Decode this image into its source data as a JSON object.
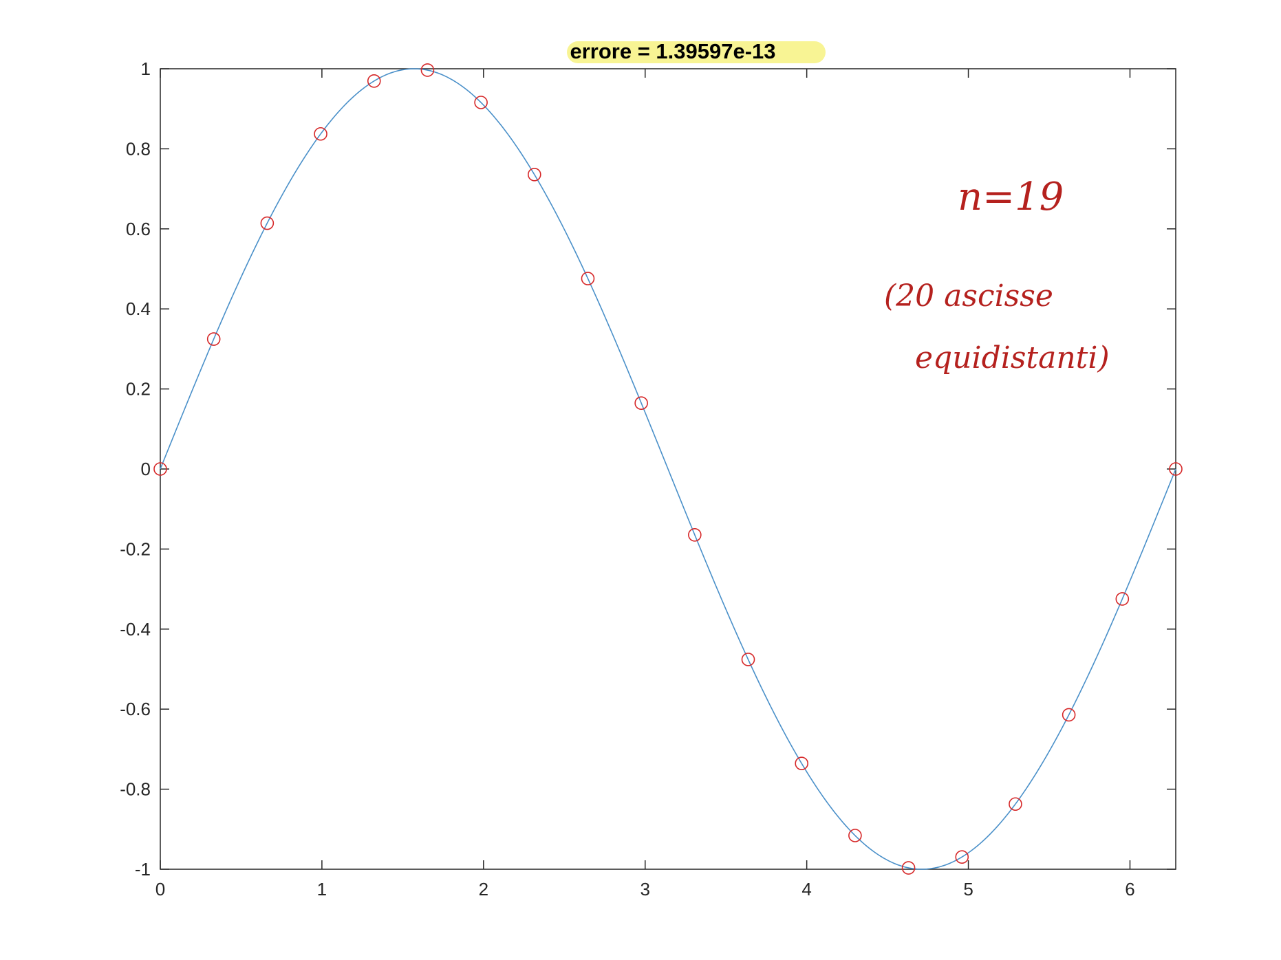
{
  "chart_data": {
    "type": "line",
    "title": "errore = 1.39597e-13",
    "xlabel": "",
    "ylabel": "",
    "xlim": [
      0,
      6.2832
    ],
    "ylim": [
      -1,
      1
    ],
    "xticks": [
      0,
      1,
      2,
      3,
      4,
      5,
      6
    ],
    "xtick_labels": [
      "0",
      "1",
      "2",
      "3",
      "4",
      "5",
      "6"
    ],
    "yticks": [
      -1,
      -0.8,
      -0.6,
      -0.4,
      -0.2,
      0,
      0.2,
      0.4,
      0.6,
      0.8,
      1
    ],
    "ytick_labels": [
      "-1",
      "-0.8",
      "-0.6",
      "-0.4",
      "-0.2",
      "0",
      "0.2",
      "0.4",
      "0.6",
      "0.8",
      "1"
    ],
    "grid": false,
    "legend": "none",
    "series": [
      {
        "style": "solid line",
        "color": "#4a90c9",
        "function": "sin(x)",
        "x_range": [
          0,
          6.2832
        ]
      },
      {
        "style": "circle markers",
        "color": "#d62728",
        "x": [
          0,
          0.3307,
          0.6614,
          0.9921,
          1.3228,
          1.6535,
          1.9842,
          2.3149,
          2.6456,
          2.9762,
          3.3069,
          3.6376,
          3.9683,
          4.299,
          4.6297,
          4.9604,
          5.2911,
          5.6218,
          5.9525,
          6.2832
        ],
        "y": [
          0,
          0.3247,
          0.6142,
          0.8372,
          0.9694,
          0.9966,
          0.9158,
          0.7357,
          0.4759,
          0.1646,
          -0.1646,
          -0.4759,
          -0.7357,
          -0.9158,
          -0.9966,
          -0.9694,
          -0.8372,
          -0.6142,
          -0.3247,
          0
        ]
      }
    ],
    "annotations": {
      "handwritten_line1": "n=19",
      "handwritten_line2": "(20 ascisse",
      "handwritten_line3": "equidistanti)",
      "highlight_color": "#f7f281",
      "annotation_color": "#b5211e"
    }
  }
}
